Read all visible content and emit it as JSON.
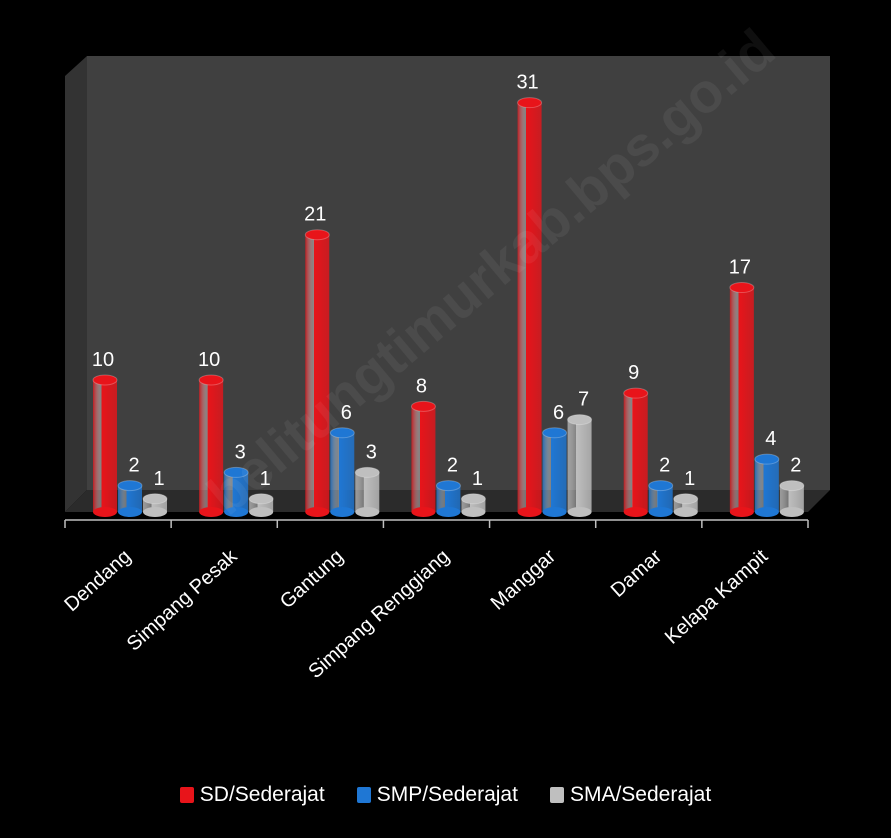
{
  "chart_data": {
    "type": "bar",
    "title": "",
    "xlabel": "",
    "ylabel": "",
    "categories": [
      "Dendang",
      "Simpang Pesak",
      "Gantung",
      "Simpang Renggiang",
      "Manggar",
      "Damar",
      "Kelapa Kampit"
    ],
    "series": [
      {
        "name": "SD/Sederajat",
        "color": "#e8141a",
        "values": [
          10,
          10,
          21,
          8,
          31,
          9,
          17
        ]
      },
      {
        "name": "SMP/Sederajat",
        "color": "#1f77d4",
        "values": [
          2,
          3,
          6,
          2,
          6,
          2,
          4
        ]
      },
      {
        "name": "SMA/Sederajat",
        "color": "#bfbfbf",
        "values": [
          1,
          1,
          3,
          1,
          7,
          1,
          2
        ]
      }
    ],
    "ylim": [
      0,
      35
    ],
    "grid": false,
    "legend": "bottom",
    "style": "3d-cylinder"
  },
  "watermark": "belitungtimurkab.bps.go.id",
  "colors": {
    "background": "#000000",
    "wall": "#404040",
    "floor": "#2b2b2b",
    "text": "#ffffff"
  }
}
